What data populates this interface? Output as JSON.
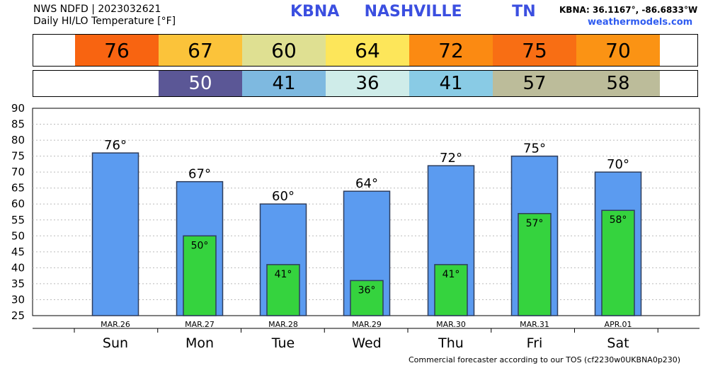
{
  "header": {
    "title": "NWS NDFD | 2023032621",
    "subtitle": "Daily HI/LO Temperature [°F]",
    "station": "KBNA  NASHVILLE    TN",
    "coords": "KBNA: 36.1167°, -86.6833°W",
    "site": "weathermodels.com"
  },
  "colors": {
    "high_bar": "#5b9bf0",
    "low_bar": "#35d33e",
    "hi_cells": [
      "#f86411",
      "#fbc33a",
      "#dfe092",
      "#fde65a",
      "#fb8a12",
      "#f86e14",
      "#fb9314"
    ],
    "lo_cells": [
      "#5b5796",
      "#7eb9e0",
      "#cfece9",
      "#89cbe5",
      "#bcbc9a",
      "#bcbc9a"
    ]
  },
  "hi_strip": [
    "76",
    "67",
    "60",
    "64",
    "72",
    "75",
    "70"
  ],
  "lo_strip": [
    "50",
    "41",
    "36",
    "41",
    "57",
    "58"
  ],
  "chart_data": {
    "type": "bar",
    "categories": [
      "Sun",
      "Mon",
      "Tue",
      "Wed",
      "Thu",
      "Fri",
      "Sat"
    ],
    "dates": [
      "MAR.26",
      "MAR.27",
      "MAR.28",
      "MAR.29",
      "MAR.30",
      "MAR.31",
      "APR.01"
    ],
    "series": [
      {
        "values": [
          76,
          67,
          60,
          64,
          72,
          75,
          70
        ],
        "labels": [
          "76°",
          "67°",
          "60°",
          "64°",
          "72°",
          "75°",
          "70°"
        ]
      },
      {
        "values": [
          null,
          50,
          41,
          36,
          41,
          57,
          58
        ],
        "labels": [
          null,
          "50°",
          "41°",
          "36°",
          "41°",
          "57°",
          "58°"
        ]
      }
    ],
    "ylim": [
      25,
      90
    ],
    "yticks": [
      25,
      30,
      35,
      40,
      45,
      50,
      55,
      60,
      65,
      70,
      75,
      80,
      85,
      90
    ],
    "grid": true
  },
  "footer": "Commercial forecaster according to our TOS (cf2230w0UKBNA0p230)"
}
